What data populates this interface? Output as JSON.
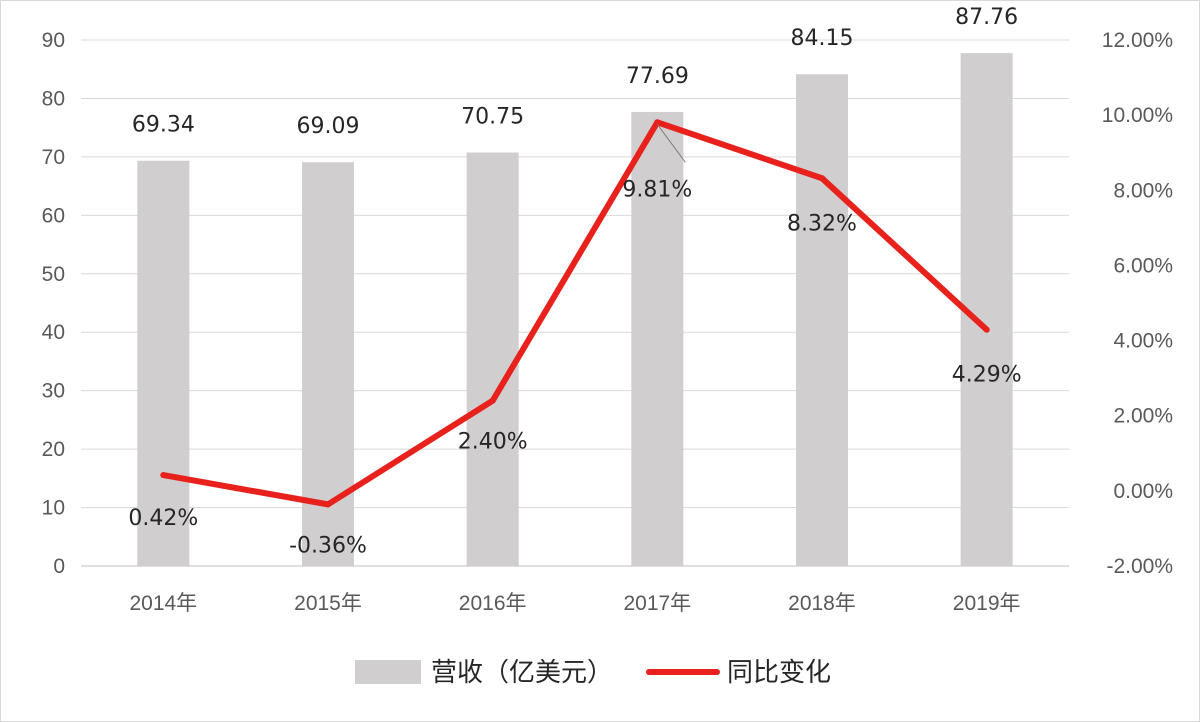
{
  "chart_data": {
    "type": "bar",
    "categories": [
      "2014年",
      "2015年",
      "2016年",
      "2017年",
      "2018年",
      "2019年"
    ],
    "series": [
      {
        "name": "营收（亿美元）",
        "type": "bar",
        "axis": "left",
        "color": "#d0cece",
        "values": [
          69.34,
          69.09,
          70.75,
          77.69,
          84.15,
          87.76
        ],
        "labels": [
          "69.34",
          "69.09",
          "70.75",
          "77.69",
          "84.15",
          "87.76"
        ]
      },
      {
        "name": "同比变化",
        "type": "line",
        "axis": "right",
        "color": "#e8211c",
        "values": [
          0.42,
          -0.36,
          2.4,
          9.81,
          8.32,
          4.29
        ],
        "labels": [
          "0.42%",
          "-0.36%",
          "2.40%",
          "9.81%",
          "8.32%",
          "4.29%"
        ]
      }
    ],
    "y_left": {
      "range": [
        0,
        90
      ],
      "ticks": [
        0,
        10,
        20,
        30,
        40,
        50,
        60,
        70,
        80,
        90
      ],
      "tick_labels": [
        "0",
        "10",
        "20",
        "30",
        "40",
        "50",
        "60",
        "70",
        "80",
        "90"
      ]
    },
    "y_right": {
      "range": [
        -2,
        12
      ],
      "unit": "%",
      "ticks": [
        -2,
        0,
        2,
        4,
        6,
        8,
        10,
        12
      ],
      "tick_labels": [
        "-2.00%",
        "0.00%",
        "2.00%",
        "4.00%",
        "6.00%",
        "8.00%",
        "10.00%",
        "12.00%"
      ]
    },
    "grid": true,
    "legend_position": "bottom-center",
    "title": "",
    "xlabel": "",
    "ylabel": ""
  }
}
